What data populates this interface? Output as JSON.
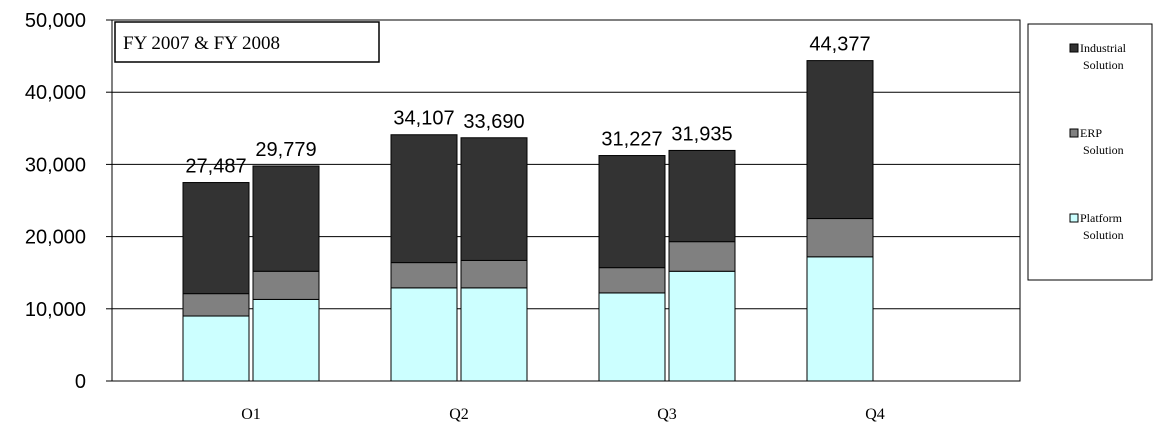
{
  "chart_data": {
    "type": "bar",
    "stacked": true,
    "title": "FY 2007 & FY 2008",
    "categories": [
      "O1",
      "Q2",
      "Q3",
      "Q4"
    ],
    "groups": [
      {
        "category": "O1",
        "bars": [
          {
            "total": 27487,
            "total_label": "27,487",
            "segments": [
              9000,
              3100,
              15387
            ]
          },
          {
            "total": 29779,
            "total_label": "29,779",
            "segments": [
              11300,
              3900,
              14579
            ]
          }
        ]
      },
      {
        "category": "Q2",
        "bars": [
          {
            "total": 34107,
            "total_label": "34,107",
            "segments": [
              12900,
              3500,
              17707
            ]
          },
          {
            "total": 33690,
            "total_label": "33,690",
            "segments": [
              12900,
              3800,
              16990
            ]
          }
        ]
      },
      {
        "category": "Q3",
        "bars": [
          {
            "total": 31227,
            "total_label": "31,227",
            "segments": [
              12200,
              3500,
              15527
            ]
          },
          {
            "total": 31935,
            "total_label": "31,935",
            "segments": [
              15200,
              4100,
              12635
            ]
          }
        ]
      },
      {
        "category": "Q4",
        "bars": [
          {
            "total": 44377,
            "total_label": "44,377",
            "segments": [
              17200,
              5300,
              21877
            ]
          }
        ]
      }
    ],
    "series": [
      {
        "name": "Platform Solution",
        "name_lines": [
          "Platform",
          "Solution"
        ],
        "color": "#ccffff"
      },
      {
        "name": "ERP Solution",
        "name_lines": [
          "ERP",
          "Solution"
        ],
        "color": "#808080"
      },
      {
        "name": "Industrial Solution",
        "name_lines": [
          "Industrial",
          "Solution"
        ],
        "color": "#333333"
      }
    ],
    "legend_order": [
      2,
      1,
      0
    ],
    "y_ticks": [
      {
        "value": 0,
        "label": "0"
      },
      {
        "value": 10000,
        "label": "10,000"
      },
      {
        "value": 20000,
        "label": "20,000"
      },
      {
        "value": 30000,
        "label": "30,000"
      },
      {
        "value": 40000,
        "label": "40,000"
      },
      {
        "value": 50000,
        "label": "50,000"
      }
    ],
    "ylim": [
      0,
      50000
    ],
    "xlabel": "",
    "ylabel": "",
    "grid": true,
    "legend_position": "right"
  }
}
